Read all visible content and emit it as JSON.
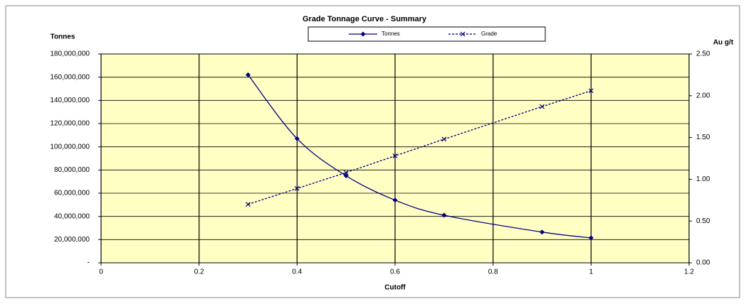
{
  "chart_data": {
    "type": "line",
    "title": "Grade Tonnage Curve - Summary",
    "x_label": "Cutoff",
    "y_label": "Tonnes",
    "y2_label": "Au g/t",
    "x": [
      0.3,
      0.4,
      0.5,
      0.6,
      0.7,
      0.9,
      1
    ],
    "series": [
      {
        "name": "Tonnes",
        "color": "#000080",
        "values": [
          162000000,
          107000000,
          75000000,
          54000000,
          41000000,
          26500000,
          21500000
        ]
      },
      {
        "name": "Grade",
        "color": "#000080",
        "axis": "y2",
        "values": [
          0.7,
          0.89,
          1.08,
          1.28,
          1.48,
          1.87,
          2.06
        ]
      }
    ],
    "xlim": [
      0,
      1.2
    ],
    "xticks": [
      0,
      0.2,
      0.4,
      0.6,
      0.8,
      1,
      1.2
    ],
    "ylim": [
      0,
      180000000
    ],
    "yticks": [
      {
        "value": 0,
        "label": "-"
      },
      {
        "value": 20000000,
        "label": "20,000,000"
      },
      {
        "value": 40000000,
        "label": "40,000,000"
      },
      {
        "value": 60000000,
        "label": "60,000,000"
      },
      {
        "value": 80000000,
        "label": "80,000,000"
      },
      {
        "value": 100000000,
        "label": "100,000,000"
      },
      {
        "value": 120000000,
        "label": "120,000,000"
      },
      {
        "value": 140000000,
        "label": "140,000,000"
      },
      {
        "value": 160000000,
        "label": "160,000,000"
      },
      {
        "value": 180000000,
        "label": "180,000,000"
      }
    ],
    "y2lim": [
      0,
      2.5
    ],
    "y2ticks": [
      {
        "value": 0,
        "label": "0.00"
      },
      {
        "value": 0.5,
        "label": "0.50"
      },
      {
        "value": 1,
        "label": "1.00"
      },
      {
        "value": 1.5,
        "label": "1.50"
      },
      {
        "value": 2,
        "label": "2.00"
      },
      {
        "value": 2.5,
        "label": "2.50"
      }
    ],
    "grid": true
  }
}
